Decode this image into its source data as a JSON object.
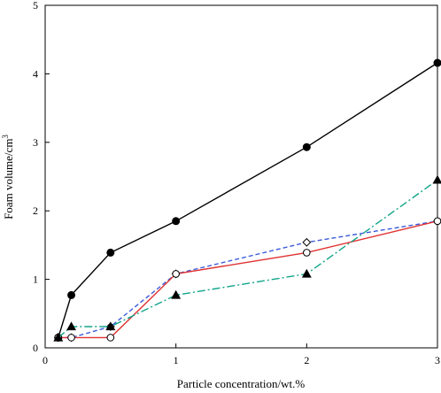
{
  "chart_data": {
    "type": "line",
    "title": "",
    "xlabel": "Particle concentration/wt.%",
    "ylabel": "Foam volume/cm",
    "ylabel_sup": "3",
    "xlim": [
      0,
      3
    ],
    "ylim": [
      0,
      5
    ],
    "xticks": [
      0,
      1,
      2,
      3
    ],
    "yticks": [
      0,
      1,
      2,
      3,
      4,
      5
    ],
    "grid": false,
    "legend": "none",
    "series": [
      {
        "marker": "filled-circle",
        "line": "solid",
        "color": "#000000",
        "x": [
          0.1,
          0.2,
          0.5,
          1,
          2,
          3
        ],
        "y": [
          0.15,
          0.77,
          1.39,
          1.85,
          2.93,
          4.16
        ]
      },
      {
        "marker": "open-diamond",
        "line": "dashed",
        "color": "#3b5bdb",
        "x": [
          0.1,
          0.2,
          0.5,
          1,
          2,
          3
        ],
        "y": [
          0.15,
          0.15,
          0.31,
          1.08,
          1.54,
          1.85
        ]
      },
      {
        "marker": "open-circle",
        "line": "solid",
        "color": "#e03131",
        "x": [
          0.1,
          0.2,
          0.5,
          1,
          2,
          3
        ],
        "y": [
          0.15,
          0.15,
          0.15,
          1.08,
          1.39,
          1.85
        ]
      },
      {
        "marker": "filled-triangle",
        "line": "dash-dot",
        "color": "#12a58a",
        "x": [
          0.1,
          0.2,
          0.5,
          1,
          2,
          3
        ],
        "y": [
          0.15,
          0.31,
          0.31,
          0.77,
          1.08,
          2.45
        ]
      }
    ]
  }
}
